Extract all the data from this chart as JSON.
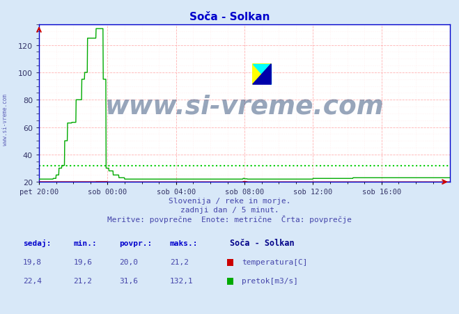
{
  "title": "Soča - Solkan",
  "title_color": "#0000cc",
  "bg_color": "#d8e8f8",
  "plot_bg_color": "#ffffff",
  "grid_color_major": "#ffaaaa",
  "grid_color_minor": "#ffdddd",
  "xlabel_ticks": [
    "pet 20:00",
    "sob 00:00",
    "sob 04:00",
    "sob 08:00",
    "sob 12:00",
    "sob 16:00"
  ],
  "xlabel_tick_positions": [
    0,
    240,
    480,
    720,
    960,
    1200
  ],
  "total_points": 1440,
  "ylim_min": 20,
  "ylim_max": 135,
  "yticks": [
    20,
    40,
    60,
    80,
    100,
    120
  ],
  "temp_color": "#cc0000",
  "flow_color": "#00aa00",
  "avg_temp_color": "#ff9999",
  "avg_flow_color": "#00cc00",
  "temp_avg": 20.0,
  "flow_avg": 31.6,
  "watermark": "www.si-vreme.com",
  "watermark_color": "#1a3a6a",
  "footer_line1": "Slovenija / reke in morje.",
  "footer_line2": "zadnji dan / 5 minut.",
  "footer_line3": "Meritve: povprečne  Enote: metrične  Črta: povprečje",
  "footer_color": "#4444aa",
  "table_header_color": "#0000cc",
  "table_data_color": "#4444aa",
  "legend_title": "Soča - Solkan",
  "legend_title_color": "#000088",
  "sidebar_text": "www.si-vreme.com",
  "sidebar_color": "#4444aa",
  "spine_color": "#0000cc",
  "arrow_color": "#cc0000"
}
